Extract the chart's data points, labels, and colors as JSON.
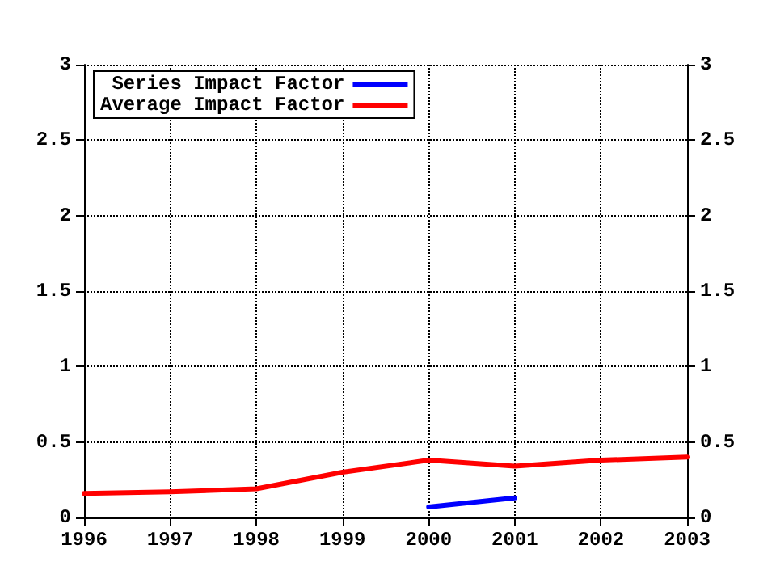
{
  "chart_data": {
    "type": "line",
    "x": [
      1996,
      1997,
      1998,
      1999,
      2000,
      2001,
      2002,
      2003
    ],
    "series": [
      {
        "name": "Series Impact Factor",
        "color": "#0000ff",
        "x": [
          2000,
          2001
        ],
        "values": [
          0.07,
          0.13
        ]
      },
      {
        "name": "Average Impact Factor",
        "color": "#ff0000",
        "values": [
          0.16,
          0.17,
          0.19,
          0.3,
          0.38,
          0.34,
          0.38,
          0.4
        ]
      }
    ],
    "xlim": [
      1996,
      2003
    ],
    "xticks": [
      1996,
      1997,
      1998,
      1999,
      2000,
      2001,
      2002,
      2003
    ],
    "ylim": [
      0,
      3
    ],
    "yticks": [
      0,
      0.5,
      1,
      1.5,
      2,
      2.5,
      3
    ],
    "y2lim": [
      0,
      3
    ],
    "y2ticks": [
      0,
      0.5,
      1,
      1.5,
      2,
      2.5,
      3
    ],
    "grid": true,
    "legend": "top left",
    "marker": "none",
    "line_style": "solid"
  }
}
